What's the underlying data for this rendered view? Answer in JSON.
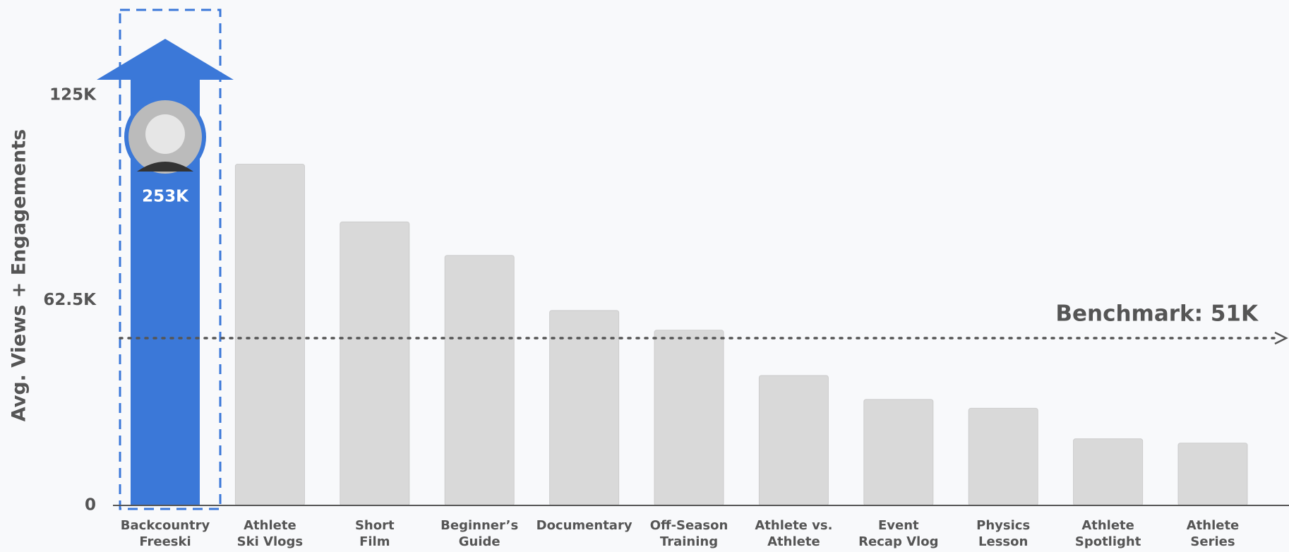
{
  "chart_data": {
    "type": "bar",
    "y_label": "Avg. Views + Engagements",
    "categories": [
      "Backcountry\nFreeski",
      "Athlete\nSki Vlogs",
      "Short\nFilm",
      "Beginner’s\nGuide",
      "Documentary",
      "Off-Season\nTraining",
      "Athlete vs.\nAthlete",
      "Event\nRecap Vlog",
      "Physics\nLesson",
      "Athlete\nSpotlight",
      "Athlete\nSeries"
    ],
    "values": [
      253000,
      104000,
      86400,
      76200,
      59400,
      53400,
      39600,
      32300,
      29600,
      20300,
      19000
    ],
    "value_labels": [
      "253K",
      null,
      null,
      null,
      null,
      null,
      null,
      null,
      null,
      null,
      null
    ],
    "colors": [
      "#3b78d8",
      "#d9d9d9",
      "#d9d9d9",
      "#d9d9d9",
      "#d9d9d9",
      "#d9d9d9",
      "#d9d9d9",
      "#d9d9d9",
      "#d9d9d9",
      "#d9d9d9",
      "#d9d9d9"
    ],
    "ylim": [
      0,
      125000
    ],
    "yticks": [
      {
        "value": 0,
        "label": "0"
      },
      {
        "value": 62500,
        "label": "62.5K"
      },
      {
        "value": 125000,
        "label": "125K"
      }
    ],
    "benchmark": {
      "value": 51000,
      "label": "Benchmark: 51K"
    },
    "grid": false
  }
}
